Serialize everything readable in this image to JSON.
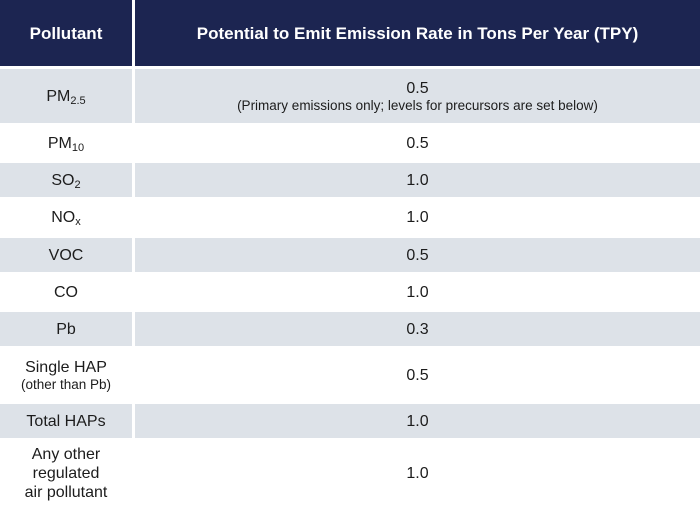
{
  "header": {
    "pollutant": "Pollutant",
    "rate": "Potential to Emit Emission Rate in Tons Per Year (TPY)"
  },
  "rows": [
    {
      "pollutant": "PM",
      "sub": "2.5",
      "rate": "0.5",
      "rate_note": "(Primary emissions only; levels for precursors are set below)"
    },
    {
      "pollutant": "PM",
      "sub": "10",
      "rate": "0.5"
    },
    {
      "pollutant": "SO",
      "sub": "2",
      "rate": "1.0"
    },
    {
      "pollutant": "NO",
      "sub": "x",
      "rate": "1.0"
    },
    {
      "pollutant": "VOC",
      "rate": "0.5"
    },
    {
      "pollutant": "CO",
      "rate": "1.0"
    },
    {
      "pollutant": "Pb",
      "rate": "0.3"
    },
    {
      "pollutant": "Single HAP",
      "note": "(other than Pb)",
      "rate": "0.5"
    },
    {
      "pollutant": "Total HAPs",
      "rate": "1.0"
    },
    {
      "pollutant_lines": [
        "Any other",
        "regulated",
        "air pollutant"
      ],
      "rate": "1.0"
    }
  ]
}
